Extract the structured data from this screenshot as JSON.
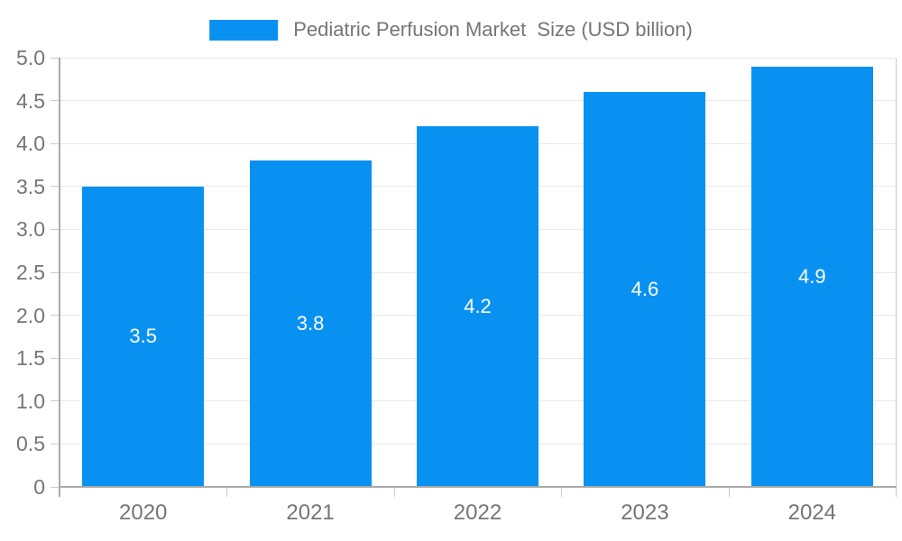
{
  "chart_data": {
    "type": "bar",
    "title": "Pediatric Perfusion Market  Size (USD billion)",
    "legend_label": "Pediatric Perfusion Market  Size (USD billion)",
    "legend_position": "top",
    "categories": [
      "2020",
      "2021",
      "2022",
      "2023",
      "2024"
    ],
    "series": [
      {
        "name": "Pediatric Perfusion Market Size (USD billion)",
        "values": [
          3.5,
          3.8,
          4.2,
          4.6,
          4.9
        ]
      }
    ],
    "values": [
      3.5,
      3.8,
      4.2,
      4.6,
      4.9
    ],
    "data_labels": [
      "3.5",
      "3.8",
      "4.2",
      "4.6",
      "4.9"
    ],
    "xlabel": "",
    "ylabel": "",
    "ylim": [
      0,
      5
    ],
    "ytick_step": 0.5,
    "ytick_labels": [
      "0",
      "0.5",
      "1.0",
      "1.5",
      "2.0",
      "2.5",
      "3.0",
      "3.5",
      "4.0",
      "4.5",
      "5.0"
    ],
    "grid": true,
    "colors": {
      "bar": "#0991f2",
      "grid": "#e9e9e9",
      "axis": "#aaaaaa",
      "tick": "#cccccc",
      "text": "#757575",
      "value_label": "#ffffff",
      "background": "#ffffff"
    }
  }
}
